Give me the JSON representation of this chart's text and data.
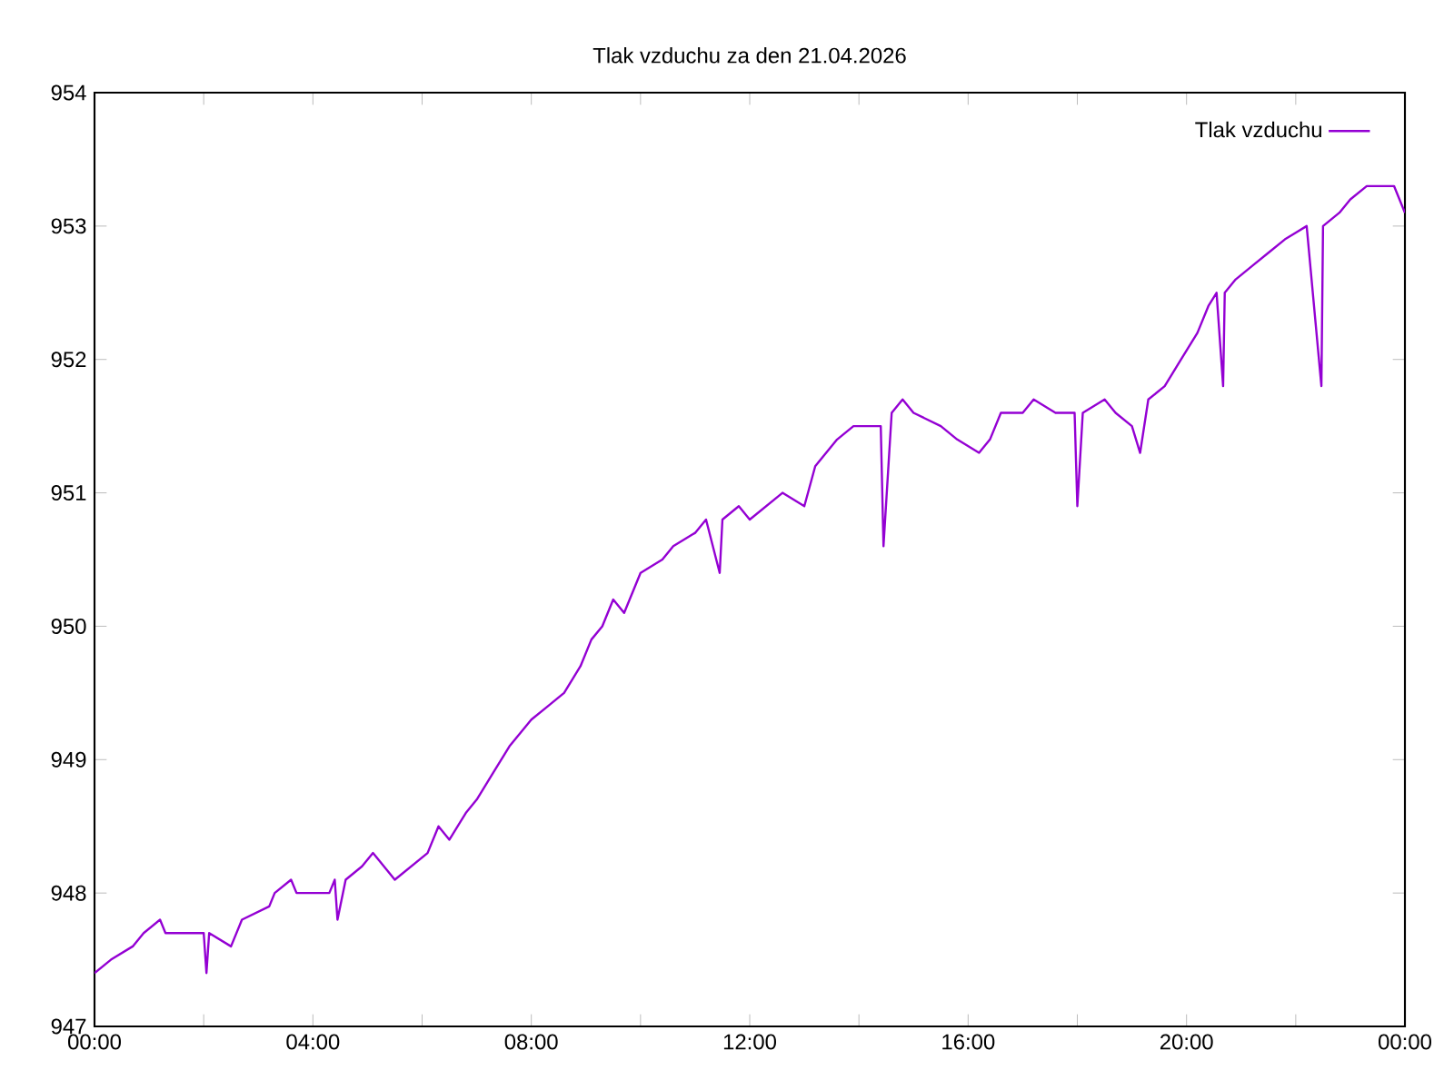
{
  "chart_data": {
    "type": "line",
    "title": "Tlak vzduchu za den 21.04.2026",
    "xlim": [
      0,
      24
    ],
    "ylim": [
      947,
      954
    ],
    "xticks": [
      {
        "value": 0,
        "label": "00:00"
      },
      {
        "value": 2,
        "label": null
      },
      {
        "value": 4,
        "label": "04:00"
      },
      {
        "value": 6,
        "label": null
      },
      {
        "value": 8,
        "label": "08:00"
      },
      {
        "value": 10,
        "label": null
      },
      {
        "value": 12,
        "label": "12:00"
      },
      {
        "value": 14,
        "label": null
      },
      {
        "value": 16,
        "label": "16:00"
      },
      {
        "value": 18,
        "label": null
      },
      {
        "value": 20,
        "label": "20:00"
      },
      {
        "value": 22,
        "label": null
      },
      {
        "value": 24,
        "label": "00:00"
      }
    ],
    "yticks": [
      947,
      948,
      949,
      950,
      951,
      952,
      953,
      954
    ],
    "legend": "top right",
    "series": [
      {
        "name": "Tlak vzduchu",
        "color": "#9400d3",
        "x": [
          0,
          0.3,
          0.7,
          0.9,
          1.2,
          1.3,
          2.0,
          2.05,
          2.1,
          2.5,
          2.7,
          3.2,
          3.3,
          3.6,
          3.7,
          4.3,
          4.4,
          4.45,
          4.6,
          4.9,
          5.1,
          5.3,
          5.5,
          6.1,
          6.3,
          6.5,
          6.8,
          7.0,
          7.3,
          7.6,
          8.0,
          8.3,
          8.6,
          8.9,
          9.1,
          9.3,
          9.5,
          9.7,
          10.0,
          10.4,
          10.6,
          11.0,
          11.2,
          11.45,
          11.5,
          11.8,
          12.0,
          12.3,
          12.6,
          13.0,
          13.2,
          13.6,
          13.9,
          14.4,
          14.45,
          14.6,
          14.8,
          15.0,
          15.5,
          15.8,
          16.2,
          16.4,
          16.6,
          17.0,
          17.2,
          17.6,
          17.95,
          18.0,
          18.1,
          18.5,
          18.7,
          19.0,
          19.15,
          19.3,
          19.6,
          19.9,
          20.2,
          20.4,
          20.55,
          20.67,
          20.7,
          20.9,
          21.2,
          21.5,
          21.8,
          22.2,
          22.47,
          22.5,
          22.8,
          23.0,
          23.3,
          23.8,
          23.9,
          24.0
        ],
        "values": [
          947.4,
          947.5,
          947.6,
          947.7,
          947.8,
          947.7,
          947.7,
          947.4,
          947.7,
          947.6,
          947.8,
          947.9,
          948.0,
          948.1,
          948.0,
          948.0,
          948.1,
          947.8,
          948.1,
          948.2,
          948.3,
          948.2,
          948.1,
          948.3,
          948.5,
          948.4,
          948.6,
          948.7,
          948.9,
          949.1,
          949.3,
          949.4,
          949.5,
          949.7,
          949.9,
          950.0,
          950.2,
          950.1,
          950.4,
          950.5,
          950.6,
          950.7,
          950.8,
          950.4,
          950.8,
          950.9,
          950.8,
          950.9,
          951.0,
          950.9,
          951.2,
          951.4,
          951.5,
          951.5,
          950.6,
          951.6,
          951.7,
          951.6,
          951.5,
          951.4,
          951.3,
          951.4,
          951.6,
          951.6,
          951.7,
          951.6,
          951.6,
          950.9,
          951.6,
          951.7,
          951.6,
          951.5,
          951.3,
          951.7,
          951.8,
          952.0,
          952.2,
          952.4,
          952.5,
          951.8,
          952.5,
          952.6,
          952.7,
          952.8,
          952.9,
          953.0,
          951.8,
          953.0,
          953.1,
          953.2,
          953.3,
          953.3,
          953.2,
          953.1
        ]
      }
    ]
  }
}
